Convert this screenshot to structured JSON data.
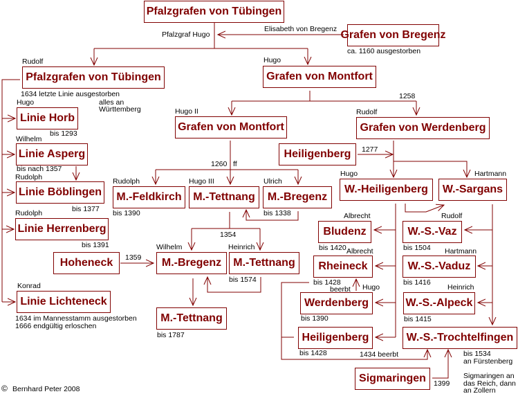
{
  "colors": {
    "line": "#800000",
    "box_text": "#800000",
    "text": "#000000"
  },
  "boxes": {
    "pfalz_top": "Pfalzgrafen von Tübingen",
    "bregenz": "Grafen von Bregenz",
    "pfalz_left": "Pfalzgrafen von Tübingen",
    "montfort1": "Grafen von Montfort",
    "horb": "Linie Horb",
    "montfort2": "Grafen von Montfort",
    "werdenberg_g": "Grafen von Werdenberg",
    "heiligenberg1": "Heiligenberg",
    "asperg": "Linie Asperg",
    "boeblingen": "Linie Böblingen",
    "feldkirch": "M.-Feldkirch",
    "tettnang1": "M.-Tettnang",
    "bregenz1": "M.-Bregenz",
    "w_heiligenberg": "W.-Heiligenberg",
    "w_sargans": "W.-Sargans",
    "herrenberg": "Linie Herrenberg",
    "bludenz": "Bludenz",
    "ws_vaz": "W.-S.-Vaz",
    "hoheneck": "Hoheneck",
    "bregenz2": "M.-Bregenz",
    "tettnang2": "M.-Tettnang",
    "rheineck": "Rheineck",
    "ws_vaduz": "W.-S.-Vaduz",
    "lichteneck": "Linie Lichteneck",
    "werdenberg": "Werdenberg",
    "ws_alpeck": "W.-S.-Alpeck",
    "tettnang3": "M.-Tettnang",
    "heiligenberg2": "Heiligenberg",
    "ws_trochtelfingen": "W.-S.-Trochtelfingen",
    "sigmaringen": "Sigmaringen"
  },
  "labels": {
    "pfalzgraf_hugo": "Pfalzgraf Hugo",
    "elisabeth": "Elisabeth von Bregenz",
    "bregenz_note": "ca. 1160 ausgestorben",
    "rudolf1": "Rudolf",
    "hugo1": "Hugo",
    "pfalz_note": "1634 letzte Linie ausgestorben",
    "wuertt1": "alles an",
    "wuertt2": "Württemberg",
    "hugo_horb": "Hugo",
    "horb_bis": "bis 1293",
    "y1258": "1258",
    "hugo2": "Hugo II",
    "rudolf2": "Rudolf",
    "wilhelm1": "Wilhelm",
    "asperg_bis": "bis nach 1357",
    "rudolph_boe": "Rudolph",
    "boe_bis": "bis 1377",
    "y1277": "1277",
    "y1260": "1260",
    "ff": "ff",
    "rudolph_feld": "Rudolph",
    "hugo3": "Hugo III",
    "ulrich": "Ulrich",
    "hugo_wh": "Hugo",
    "hartmann1": "Hartmann",
    "feld_bis": "bis 1390",
    "breg1_bis": "bis 1338",
    "rudolph_herr": "Rudolph",
    "herr_bis": "bis 1391",
    "albrecht1": "Albrecht",
    "rudolf_vaz": "Rudolf",
    "y1354": "1354",
    "bludenz_bis": "bis 1420",
    "vaz_bis": "bis 1504",
    "albrecht2": "Albrecht",
    "hartmann2": "Hartmann",
    "y1359": "1359",
    "wilhelm2": "Wilhelm",
    "heinrich1": "Heinrich",
    "tett2_bis": "bis 1574",
    "rhein_bis": "bis 1428",
    "beerbt1": "beerbt",
    "hugo_rh": "Hugo",
    "vaduz_bis": "bis 1416",
    "heinrich2": "Heinrich",
    "konrad": "Konrad",
    "licht1": "1634 im Mannesstamm ausgestorben",
    "licht2": "1666 endgültig erloschen",
    "werd_bis": "bis 1390",
    "alpeck_bis": "bis 1415",
    "tett3_bis": "bis 1787",
    "heil2_bis": "bis 1428",
    "beerbt2": "1434 beerbt",
    "troch1": "bis 1534",
    "troch2": "an Fürstenberg",
    "sig1": "Sigmaringen an",
    "sig2": "das Reich, dann",
    "sig3": "an Zollern",
    "y1399": "1399",
    "copyright_icon": "©",
    "copyright": "Bernhard Peter 2008"
  }
}
